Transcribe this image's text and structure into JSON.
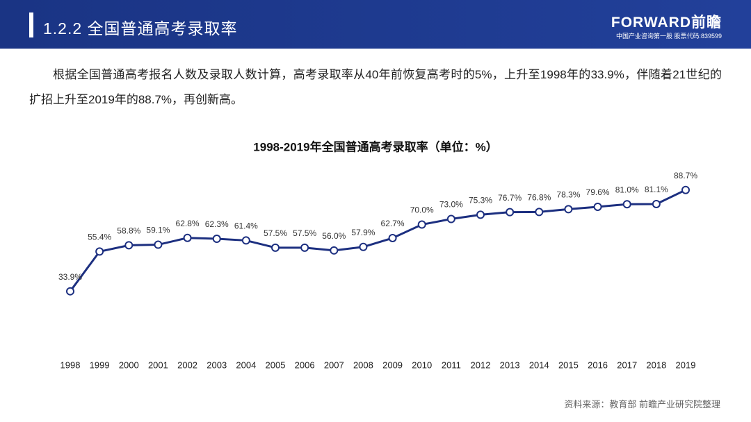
{
  "header": {
    "section": "1.2.2 全国普通高考录取率",
    "logo": "FORWARD前瞻",
    "tagline": "中国产业咨询第一股 股票代码:839599"
  },
  "intro": "根据全国普通高考报名人数及录取人数计算，高考录取率从40年前恢复高考时的5%，上升至1998年的33.9%，伴随着21世纪的扩招上升至2019年的88.7%，再创新高。",
  "chart_data": {
    "type": "line",
    "title": "1998-2019年全国普通高考录取率（单位：%）",
    "color": "#1c2f80",
    "categories": [
      "1998",
      "1999",
      "2000",
      "2001",
      "2002",
      "2003",
      "2004",
      "2005",
      "2006",
      "2007",
      "2008",
      "2009",
      "2010",
      "2011",
      "2012",
      "2013",
      "2014",
      "2015",
      "2016",
      "2017",
      "2018",
      "2019"
    ],
    "values": [
      33.9,
      55.4,
      58.8,
      59.1,
      62.8,
      62.3,
      61.4,
      57.5,
      57.5,
      56.0,
      57.9,
      62.7,
      70.0,
      73.0,
      75.3,
      76.7,
      76.8,
      78.3,
      79.6,
      81.0,
      81.1,
      88.7
    ],
    "value_labels": [
      "33.9%",
      "55.4%",
      "58.8%",
      "59.1%",
      "62.8%",
      "62.3%",
      "61.4%",
      "57.5%",
      "57.5%",
      "56.0%",
      "57.9%",
      "62.7%",
      "70.0%",
      "73.0%",
      "75.3%",
      "76.7%",
      "76.8%",
      "78.3%",
      "79.6%",
      "81.0%",
      "81.1%",
      "88.7%"
    ]
  },
  "source": "资料来源：教育部 前瞻产业研究院整理"
}
